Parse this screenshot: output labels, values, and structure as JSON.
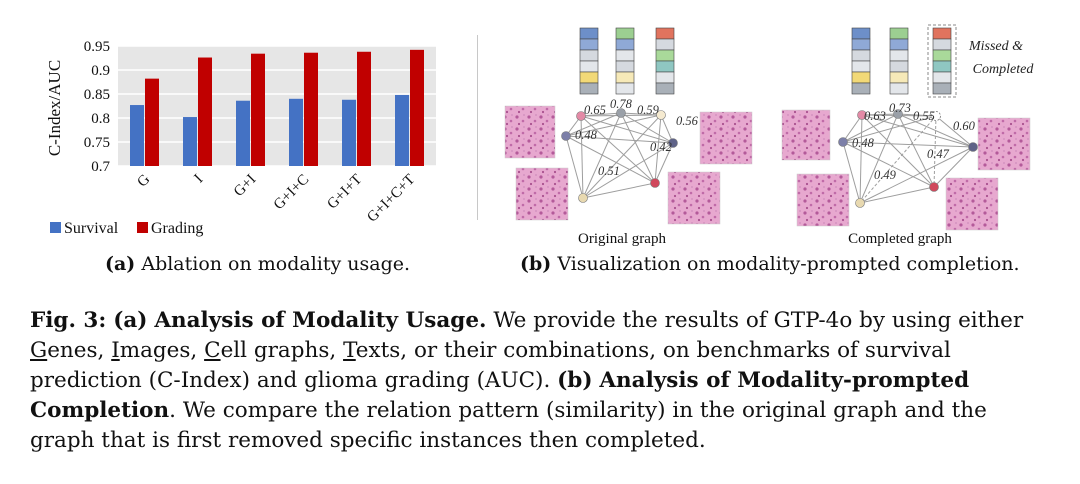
{
  "figure_a": {
    "caption_label": "(a)",
    "caption_text": "Ablation on modality usage."
  },
  "figure_b": {
    "caption_label": "(b)",
    "caption_text": "Visualization on modality-prompted completion.",
    "left_title": "Original graph",
    "right_title": "Completed graph",
    "annotation_line1": "Missed &",
    "annotation_line2": "Completed",
    "left_edge_values": [
      "0.65",
      "0.78",
      "0.59",
      "0.56",
      "0.48",
      "0.42",
      "0.51"
    ],
    "right_edge_values": [
      "0.63",
      "0.73",
      "0.55",
      "0.60",
      "0.48",
      "0.47",
      "0.49"
    ],
    "colors": {
      "node_pink": "#e38aa6",
      "node_gray": "#9aa0a8",
      "node_beige": "#e8d9b0",
      "node_purple": "#7c7fa8",
      "node_red": "#d0485c",
      "edge": "#9e9e9e",
      "dashed_box": "#888888"
    }
  },
  "chart_data": {
    "type": "bar",
    "categories": [
      "G",
      "I",
      "G+I",
      "G+I+C",
      "G+I+T",
      "G+I+C+T"
    ],
    "series": [
      {
        "name": "Survival",
        "values": [
          0.827,
          0.802,
          0.836,
          0.84,
          0.838,
          0.848
        ],
        "color": "#4472c4"
      },
      {
        "name": "Grading",
        "values": [
          0.882,
          0.926,
          0.934,
          0.936,
          0.938,
          0.942
        ],
        "color": "#c00000"
      }
    ],
    "ylabel": "C-Index/AUC",
    "ylim": [
      0.7,
      0.95
    ],
    "yticks": [
      "0.7",
      "0.75",
      "0.8",
      "0.85",
      "0.9",
      "0.95"
    ],
    "grid": true,
    "legend_position": "bottom-left"
  },
  "caption": {
    "fig_label": "Fig. 3:",
    "part_a_label": "(a)",
    "part_a_title": "Analysis of Modality Usage.",
    "part_a_text1": "We provide the results of GTP-4o by using either",
    "genes_initial": "G",
    "genes_rest": "enes,",
    "images_initial": "I",
    "images_rest": "mages,",
    "cells_initial": "C",
    "cells_rest": "ell graphs,",
    "texts_initial": "T",
    "texts_rest": "exts,",
    "part_a_text2": "or their combinations, on benchmarks of survival prediction (C-Index) and glioma grading (AUC).",
    "part_b_label": "(b)",
    "part_b_title": "Analysis of Modality-prompted Completion",
    "part_b_text": ". We compare the relation pattern (similarity) in the original graph and the graph that is first removed specific instances then completed."
  }
}
